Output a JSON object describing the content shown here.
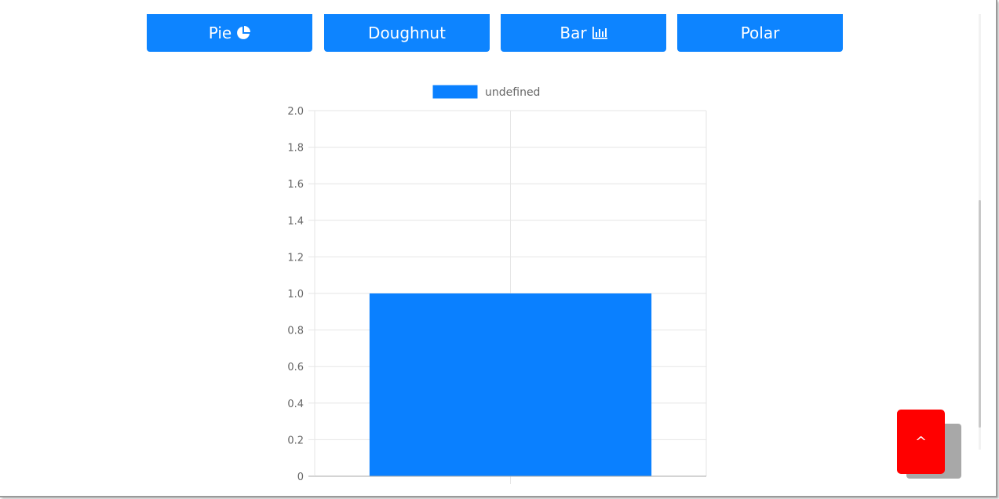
{
  "buttons": [
    {
      "label": "Pie",
      "icon": "pie-chart-icon"
    },
    {
      "label": "Doughnut",
      "icon": ""
    },
    {
      "label": "Bar",
      "icon": "bar-chart-icon"
    },
    {
      "label": "Polar",
      "icon": ""
    }
  ],
  "scroll_top": {
    "label": "^"
  },
  "colors": {
    "primary": "#0d84ff",
    "bar": "#0a80ff",
    "scroll_top": "#ff0000",
    "grid": "#e6e6e6",
    "axis_text": "#666666"
  },
  "chart_data": {
    "type": "bar",
    "legend": {
      "position": "top",
      "entries": [
        "undefined"
      ]
    },
    "categories": [
      ""
    ],
    "series": [
      {
        "name": "undefined",
        "values": [
          1.0
        ]
      }
    ],
    "ylim": [
      0,
      2.0
    ],
    "yticks": [
      "2.0",
      "1.8",
      "1.6",
      "1.4",
      "1.2",
      "1.0",
      "0.8",
      "0.6",
      "0.4",
      "0.2",
      "0"
    ],
    "grid": true
  }
}
